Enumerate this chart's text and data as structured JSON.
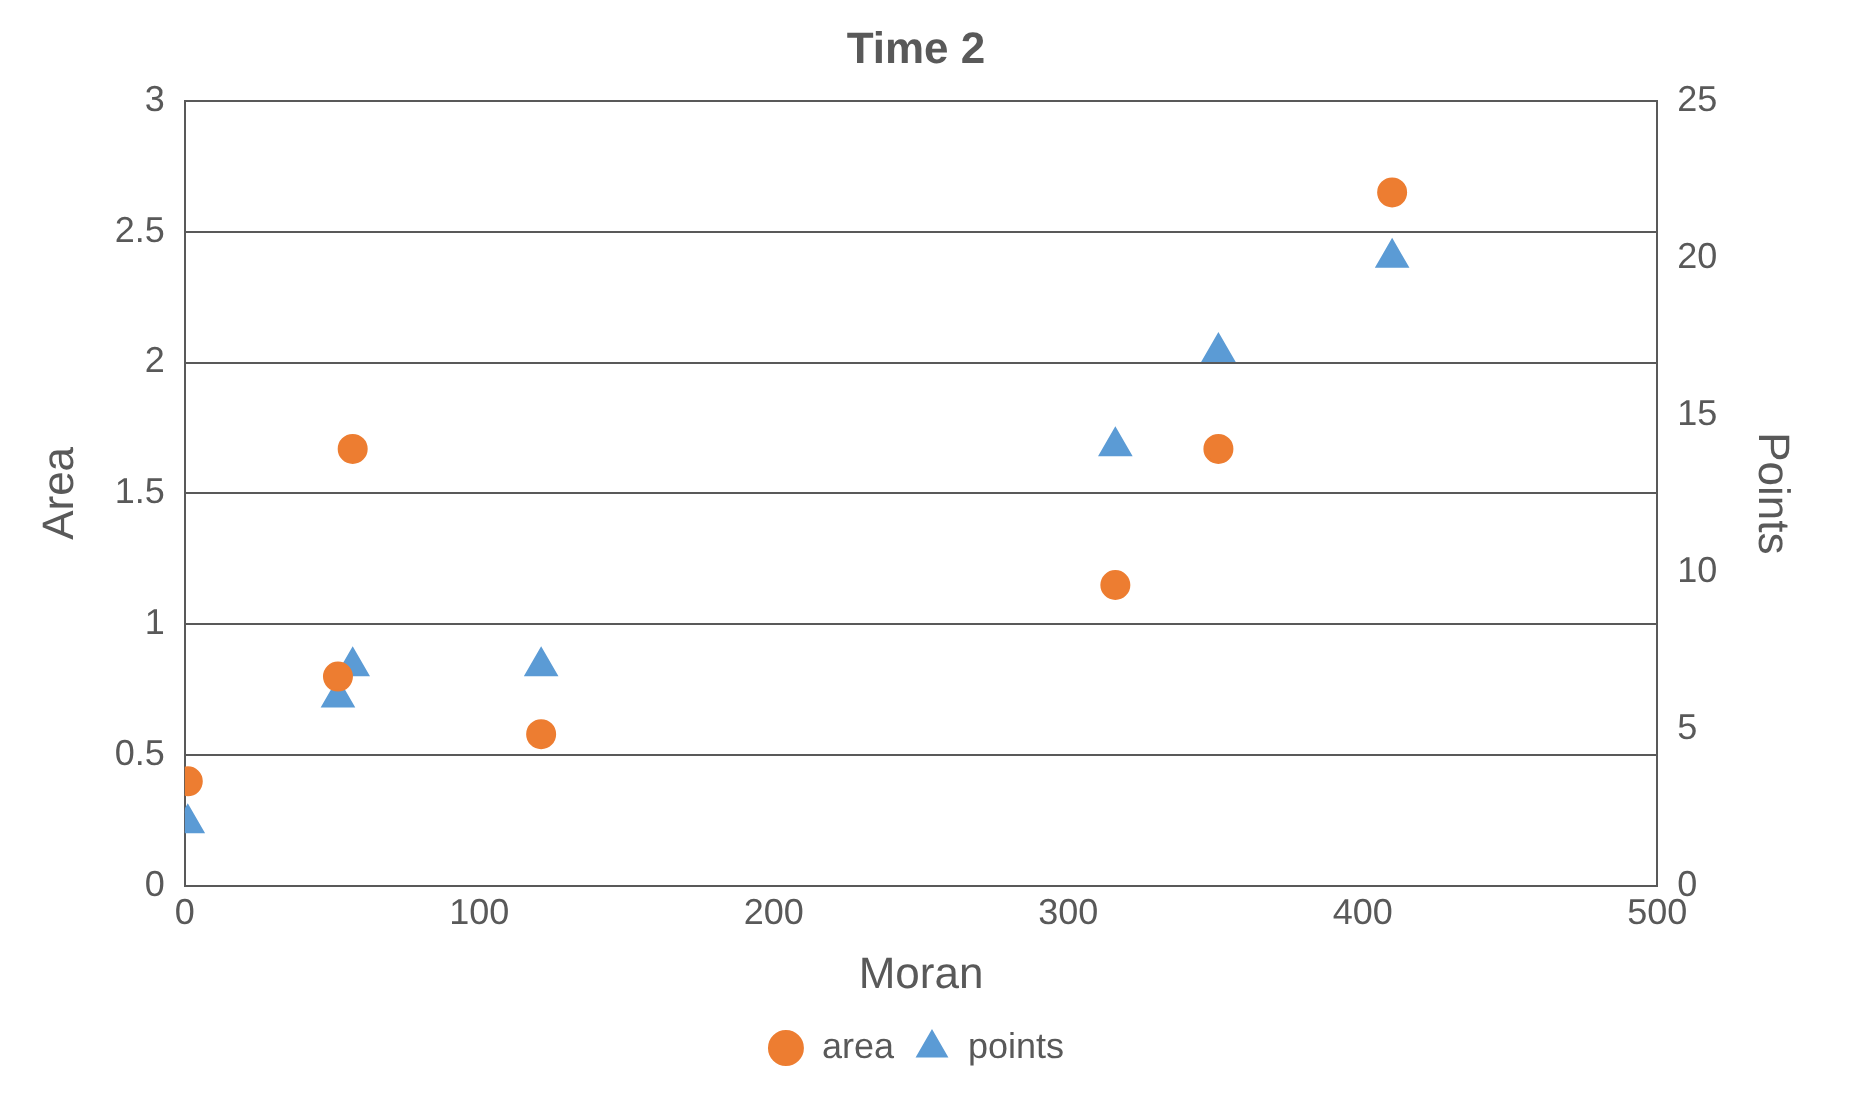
{
  "chart_data": {
    "type": "scatter",
    "title": "Time 2",
    "xlabel": "Moran",
    "ylabel": "Area",
    "y2label": "Points",
    "xlim": [
      0,
      500
    ],
    "xticks": [
      0,
      100,
      200,
      300,
      400,
      500
    ],
    "ylim": [
      0,
      3
    ],
    "yticks": [
      0,
      0.5,
      1,
      1.5,
      2,
      2.5,
      3
    ],
    "y2lim": [
      0,
      25
    ],
    "y2ticks": [
      0,
      5,
      10,
      15,
      20,
      25
    ],
    "grid": "y",
    "legend": "bottom",
    "series": [
      {
        "name": "area",
        "color": "#ed7d31",
        "marker": "circle",
        "x": [
          1,
          52,
          57,
          121,
          316,
          351,
          410
        ],
        "values": [
          0.4,
          0.8,
          1.67,
          0.58,
          1.15,
          1.67,
          2.65
        ]
      },
      {
        "name": "points",
        "color": "#5b9bd5",
        "marker": "triangle",
        "axis": "y2",
        "x": [
          1,
          52,
          57,
          121,
          316,
          351,
          410
        ],
        "values": [
          2,
          6,
          7,
          7,
          14,
          17,
          20
        ]
      }
    ]
  }
}
